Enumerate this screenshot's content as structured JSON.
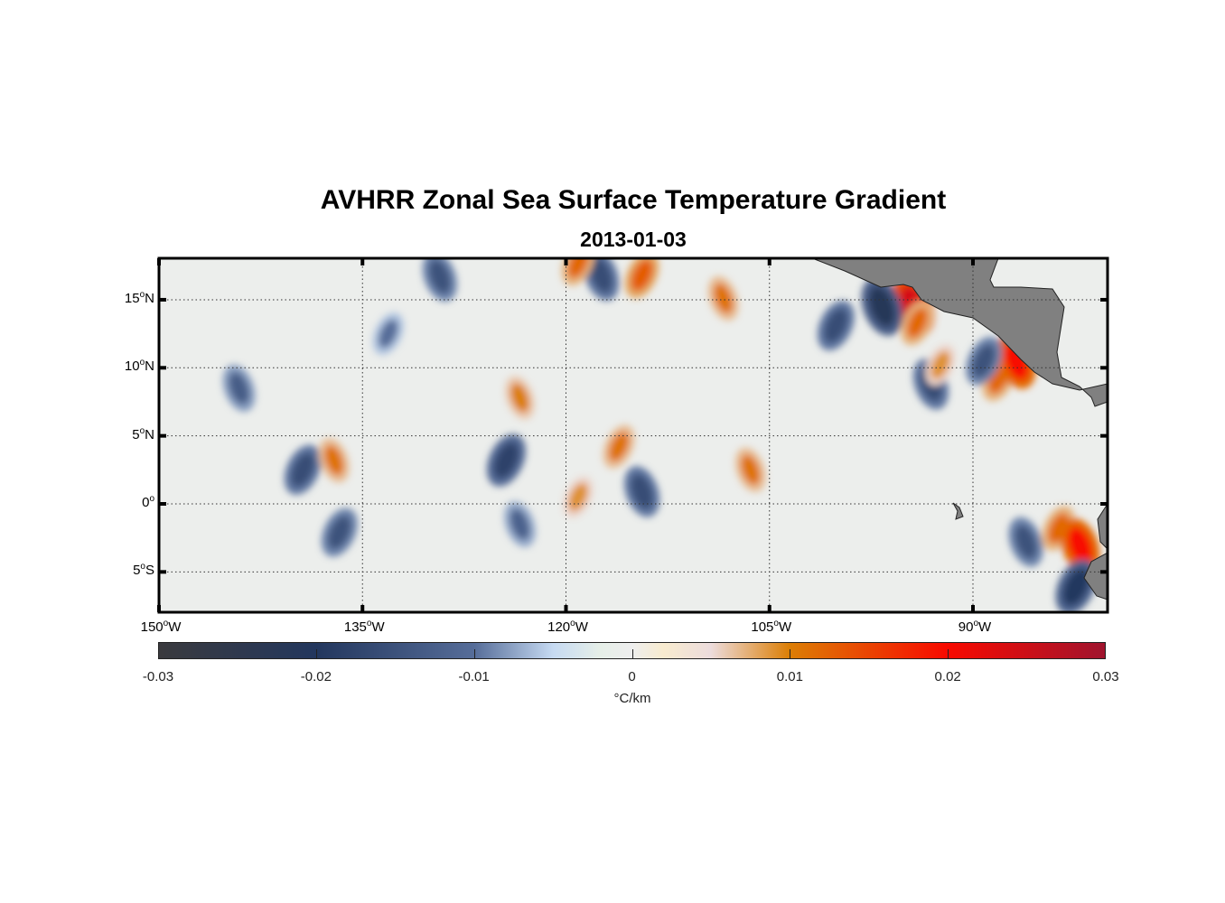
{
  "title": "AVHRR Zonal Sea Surface Temperature Gradient",
  "subtitle": "2013-01-03",
  "map": {
    "lon_range": [
      -150,
      -83.3
    ],
    "lat_range": [
      -8,
      18
    ],
    "lat_ticks": [
      {
        "value": 15,
        "num": "15",
        "hemi": "N"
      },
      {
        "value": 10,
        "num": "10",
        "hemi": "N"
      },
      {
        "value": 5,
        "num": "5",
        "hemi": "N"
      },
      {
        "value": 0,
        "num": "0",
        "hemi": ""
      },
      {
        "value": -5,
        "num": "5",
        "hemi": "S"
      }
    ],
    "lon_ticks": [
      {
        "value": -150,
        "num": "150",
        "hemi": "W"
      },
      {
        "value": -135,
        "num": "135",
        "hemi": "W"
      },
      {
        "value": -120,
        "num": "120",
        "hemi": "W"
      },
      {
        "value": -105,
        "num": "105",
        "hemi": "W"
      },
      {
        "value": -90,
        "num": "90",
        "hemi": "W"
      }
    ],
    "degree_symbol": "o",
    "ocean_color": "#eceeec",
    "land_color": "#808080",
    "features": [
      {
        "lon": -94.4,
        "lat": 14.5,
        "value": 0.024
      },
      {
        "lon": -94.1,
        "lat": 13.3,
        "value": 0.012
      },
      {
        "lon": -96.7,
        "lat": 14.5,
        "value": -0.022
      },
      {
        "lon": -100.1,
        "lat": 13.1,
        "value": -0.016
      },
      {
        "lon": -93.1,
        "lat": 8.8,
        "value": -0.016
      },
      {
        "lon": -88.1,
        "lat": 9.2,
        "value": 0.012
      },
      {
        "lon": -86.8,
        "lat": 10.5,
        "value": 0.02
      },
      {
        "lon": -83.7,
        "lat": -1.8,
        "value": 0.012
      },
      {
        "lon": -82.1,
        "lat": -3.1,
        "value": 0.02
      },
      {
        "lon": -82.4,
        "lat": -6.1,
        "value": -0.02
      },
      {
        "lon": -86.1,
        "lat": -2.8,
        "value": -0.015
      },
      {
        "lon": -89.2,
        "lat": 10.5,
        "value": -0.015
      },
      {
        "lon": -108.4,
        "lat": 15.1,
        "value": 0.011
      },
      {
        "lon": -114.4,
        "lat": 16.8,
        "value": 0.013
      },
      {
        "lon": -117.4,
        "lat": 16.8,
        "value": -0.016
      },
      {
        "lon": -119.1,
        "lat": 17.7,
        "value": 0.012
      },
      {
        "lon": -129.3,
        "lat": 16.7,
        "value": -0.015
      },
      {
        "lon": -124.4,
        "lat": 3.2,
        "value": -0.018
      },
      {
        "lon": -114.4,
        "lat": 0.9,
        "value": -0.016
      },
      {
        "lon": -116.1,
        "lat": 4.2,
        "value": 0.011
      },
      {
        "lon": -106.4,
        "lat": 2.5,
        "value": 0.011
      },
      {
        "lon": -139.4,
        "lat": 2.5,
        "value": -0.016
      },
      {
        "lon": -137.1,
        "lat": 3.2,
        "value": 0.011
      },
      {
        "lon": -136.7,
        "lat": -2.1,
        "value": -0.015
      },
      {
        "lon": -144.1,
        "lat": 8.5,
        "value": -0.013
      },
      {
        "lon": -119.1,
        "lat": 0.5,
        "value": 0.009
      },
      {
        "lon": -123.4,
        "lat": 7.8,
        "value": 0.01
      },
      {
        "lon": -133.1,
        "lat": 12.5,
        "value": -0.01
      },
      {
        "lon": -123.4,
        "lat": -1.5,
        "value": -0.012
      },
      {
        "lon": -92.4,
        "lat": 10.2,
        "value": 0.009
      }
    ]
  },
  "colorbar": {
    "min": -0.03,
    "max": 0.03,
    "tick_values": [
      -0.03,
      -0.02,
      -0.01,
      0,
      0.01,
      0.02,
      0.03
    ],
    "tick_labels": [
      "-0.03",
      "-0.02",
      "-0.01",
      "0",
      "0.01",
      "0.02",
      "0.03"
    ],
    "unit": "°C/km",
    "stops": [
      {
        "value": -0.03,
        "color": "#3a3a3e"
      },
      {
        "value": -0.02,
        "color": "#23375e"
      },
      {
        "value": -0.01,
        "color": "#566d99"
      },
      {
        "value": -0.005,
        "color": "#c6daf2"
      },
      {
        "value": -0.002,
        "color": "#e6efe8"
      },
      {
        "value": 0,
        "color": "#eeeeee"
      },
      {
        "value": 0.002,
        "color": "#f8ebcf"
      },
      {
        "value": 0.005,
        "color": "#ecdcdc"
      },
      {
        "value": 0.01,
        "color": "#dc7e05"
      },
      {
        "value": 0.02,
        "color": "#f80a00"
      },
      {
        "value": 0.03,
        "color": "#a0142e"
      }
    ]
  }
}
